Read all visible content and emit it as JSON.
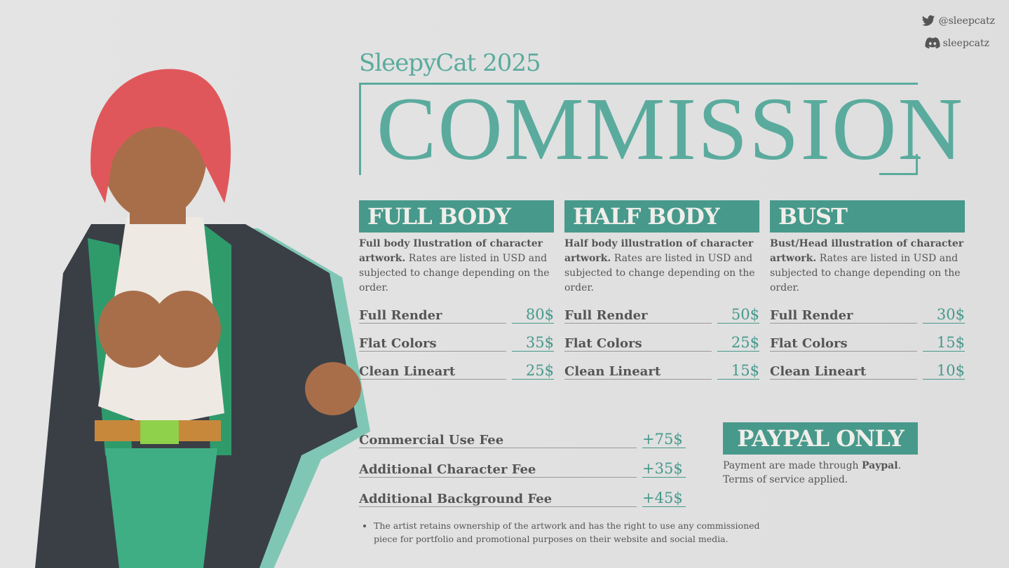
{
  "social": {
    "twitter_icon": "twitter-bird-icon",
    "twitter": "@sleepcatz",
    "discord_icon": "discord-icon",
    "discord": "sleepcatz"
  },
  "header": {
    "subtitle": "SleepyCat 2025",
    "title": "COMMISSION"
  },
  "colors": {
    "accent": "#47998b",
    "title": "#5aab9d",
    "background": "#e0e0e0"
  },
  "tiers": [
    {
      "name": "FULL BODY",
      "desc_bold": "Full body Ilustration of character artwork.",
      "desc": " Rates are listed in USD and subjected to change depending on the order.",
      "prices": [
        {
          "label": "Full Render",
          "price": "80$"
        },
        {
          "label": "Flat Colors",
          "price": "35$"
        },
        {
          "label": "Clean Lineart",
          "price": "25$"
        }
      ]
    },
    {
      "name": "HALF BODY",
      "desc_bold": "Half body illustration of character artwork.",
      "desc": " Rates are listed in USD and subjected to change depending on the order.",
      "prices": [
        {
          "label": "Full Render",
          "price": "50$"
        },
        {
          "label": "Flat Colors",
          "price": "25$"
        },
        {
          "label": "Clean Lineart",
          "price": "15$"
        }
      ]
    },
    {
      "name": "BUST",
      "desc_bold": "Bust/Head illustration of character artwork.",
      "desc": " Rates are listed in USD and subjected to change depending on the order.",
      "prices": [
        {
          "label": "Full Render",
          "price": "30$"
        },
        {
          "label": "Flat Colors",
          "price": "15$"
        },
        {
          "label": "Clean Lineart",
          "price": "10$"
        }
      ]
    }
  ],
  "fees": [
    {
      "label": "Commercial Use Fee",
      "price": "+75$"
    },
    {
      "label": "Additional Character Fee",
      "price": "+35$"
    },
    {
      "label": "Additional Background Fee",
      "price": "+45$"
    }
  ],
  "payment": {
    "title": "PAYPAL ONLY",
    "line1_pre": "Payment are made through ",
    "line1_bold": "Paypal",
    "line1_post": ".",
    "line2": "Terms of service applied."
  },
  "note": "The artist retains ownership of the artwork and has the right to use any commissioned piece for portfolio and promotional purposes on their website and social media."
}
